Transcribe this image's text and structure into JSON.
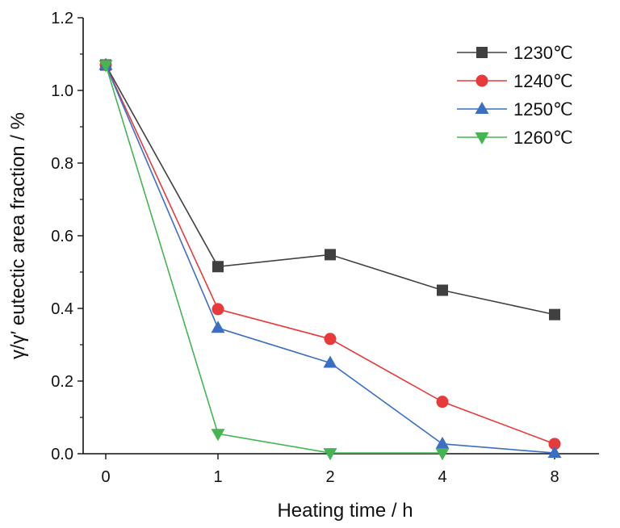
{
  "chart_data": {
    "type": "line",
    "categories": [
      "0",
      "1",
      "2",
      "4",
      "8"
    ],
    "xlabel": "Heating time / h",
    "ylabel": "γ/γ′ eutectic area fraction / %",
    "ylim": [
      0.0,
      1.2
    ],
    "yticks": [
      "0.0",
      "0.2",
      "0.4",
      "0.6",
      "0.8",
      "1.0",
      "1.2"
    ],
    "grid": false,
    "legend_position": "top-right",
    "series": [
      {
        "name": "1230℃",
        "color": "#404040",
        "marker": "square",
        "values": [
          1.07,
          0.515,
          0.548,
          0.45,
          0.383
        ]
      },
      {
        "name": "1240℃",
        "color": "#e83a3a",
        "marker": "circle",
        "values": [
          1.07,
          0.398,
          0.316,
          0.143,
          0.027
        ]
      },
      {
        "name": "1250℃",
        "color": "#3a6fc4",
        "marker": "triangle-up",
        "values": [
          1.07,
          0.346,
          0.25,
          0.027,
          0.002
        ]
      },
      {
        "name": "1260℃",
        "color": "#44b552",
        "marker": "triangle-down",
        "values": [
          1.07,
          0.055,
          0.002,
          0.002,
          null
        ]
      }
    ]
  }
}
